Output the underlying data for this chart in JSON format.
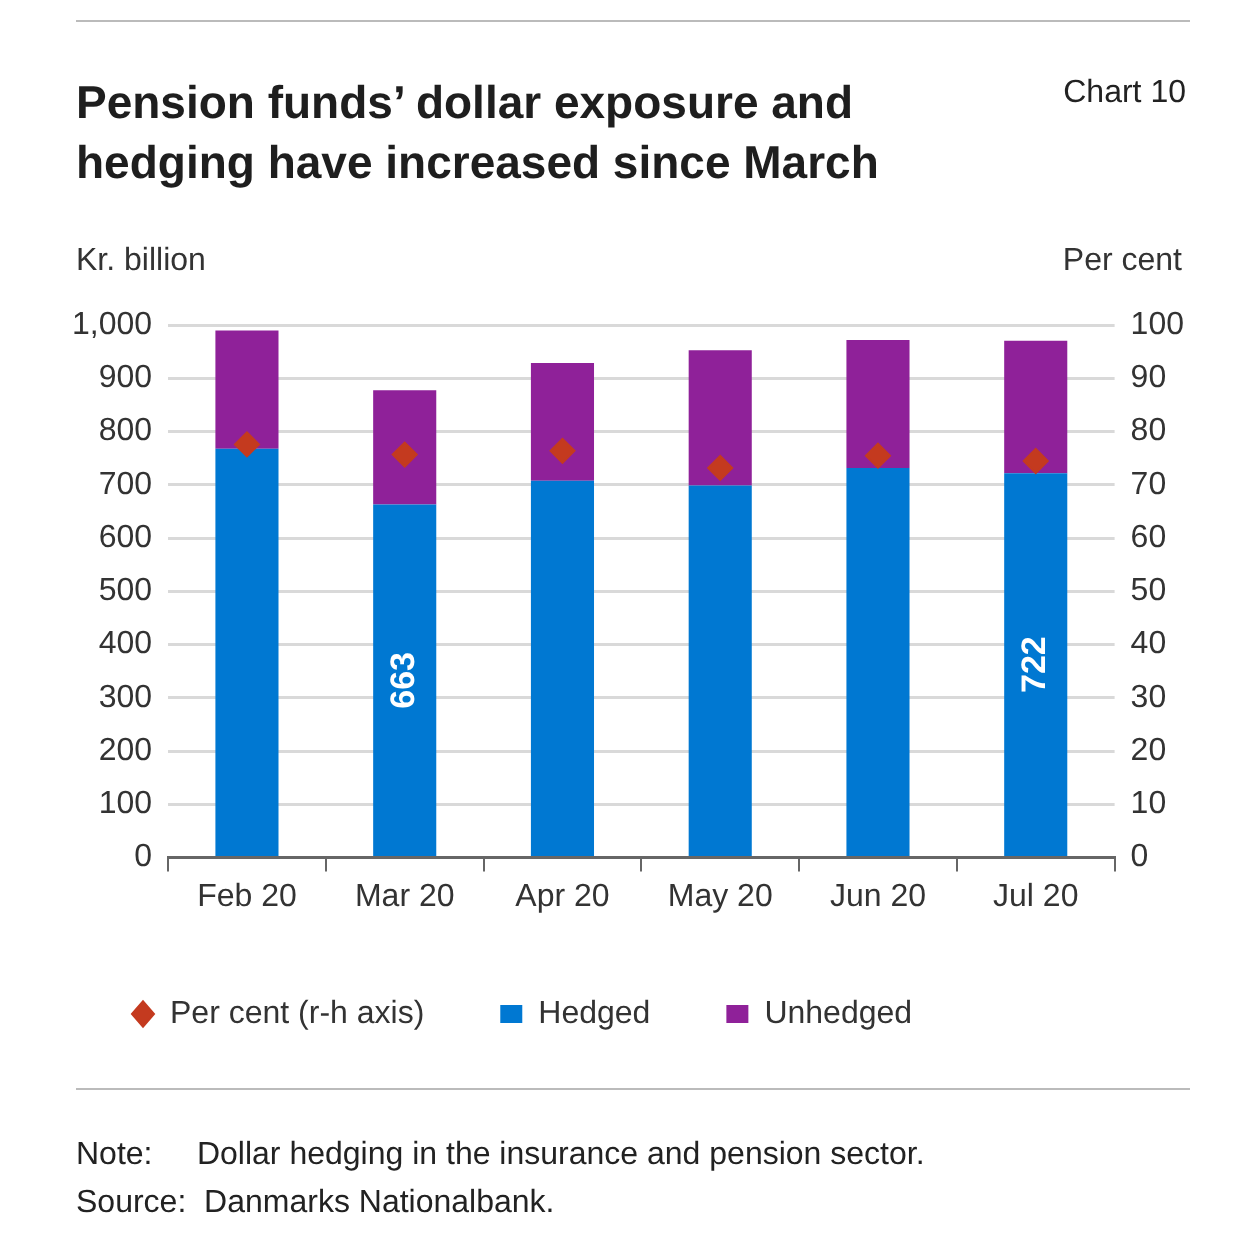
{
  "chart_data": {
    "type": "bar",
    "title": "Pension funds’ dollar exposure and hedging have increased since March",
    "categories": [
      "Feb 20",
      "Mar 20",
      "Apr 20",
      "May 20",
      "Jun 20",
      "Jul 20"
    ],
    "stacked": true,
    "series": [
      {
        "name": "Hedged",
        "color": "#0078d2",
        "values": [
          768,
          663,
          708,
          699,
          732,
          722
        ],
        "value_labels": [
          null,
          "663",
          null,
          null,
          null,
          "722"
        ]
      },
      {
        "name": "Unhedged",
        "color": "#8f2199",
        "values": [
          222,
          215,
          221,
          254,
          240,
          249
        ]
      },
      {
        "name": "Per cent (r-h axis)",
        "type": "scatter",
        "axis": "y2",
        "marker": "diamond",
        "color": "#c43a1f",
        "x": [
          "Feb 20",
          "Mar 20",
          "Apr 20",
          "May 20",
          "Jun 20",
          "Jul 20"
        ],
        "values": [
          77.6,
          75.7,
          76.4,
          73.2,
          75.5,
          74.5
        ]
      }
    ],
    "ylabel": "Kr. billion",
    "y2label": "Per cent",
    "ylim": [
      0,
      1000
    ],
    "yticks": [
      0,
      100,
      200,
      300,
      400,
      500,
      600,
      700,
      800,
      900,
      {
        "value": 1000,
        "label": "1,000"
      }
    ],
    "y2lim": [
      0,
      100
    ],
    "y2ticks": [
      0,
      10,
      20,
      30,
      40,
      50,
      60,
      70,
      80,
      90,
      100
    ],
    "grid": "y",
    "legend": "bottom",
    "annotations": [
      "Chart 10",
      "Note:     Dollar hedging in the insurance and pension sector.",
      "Source:  Danmarks Nationalbank."
    ]
  }
}
